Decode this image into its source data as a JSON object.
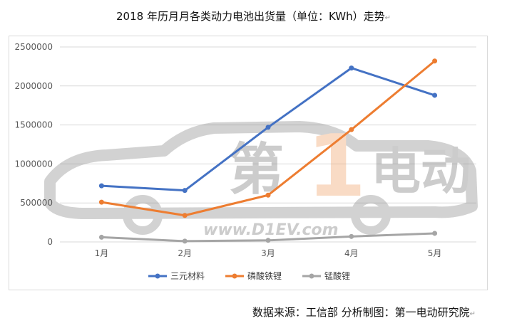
{
  "title": "2018 年历月月各类动力电池出货量（单位：KWh）走势",
  "footer": "数据来源：工信部  分析制图：第一电动研究院",
  "watermark": {
    "text_cn": "第1电动",
    "text_url": "www.D1EV.com"
  },
  "chart_data": {
    "type": "line",
    "title": "2018 年历月月各类动力电池出货量（单位：KWh）走势",
    "xlabel": "",
    "ylabel": "",
    "categories": [
      "1月",
      "2月",
      "3月",
      "4月",
      "5月"
    ],
    "ylim": [
      0,
      2500000
    ],
    "yticks": [
      0,
      500000,
      1000000,
      1500000,
      2000000,
      2500000
    ],
    "ytick_labels": [
      "0",
      "500000",
      "1000000",
      "1500000",
      "2000000",
      "2500000"
    ],
    "grid": true,
    "legend_position": "bottom",
    "series": [
      {
        "name": "三元材料",
        "color": "#4472C4",
        "values": [
          720000,
          660000,
          1470000,
          2230000,
          1880000
        ]
      },
      {
        "name": "磷酸铁锂",
        "color": "#ED7D31",
        "values": [
          510000,
          340000,
          600000,
          1440000,
          2320000
        ]
      },
      {
        "name": "锰酸锂",
        "color": "#A5A5A5",
        "values": [
          60000,
          10000,
          20000,
          70000,
          110000
        ]
      }
    ]
  }
}
